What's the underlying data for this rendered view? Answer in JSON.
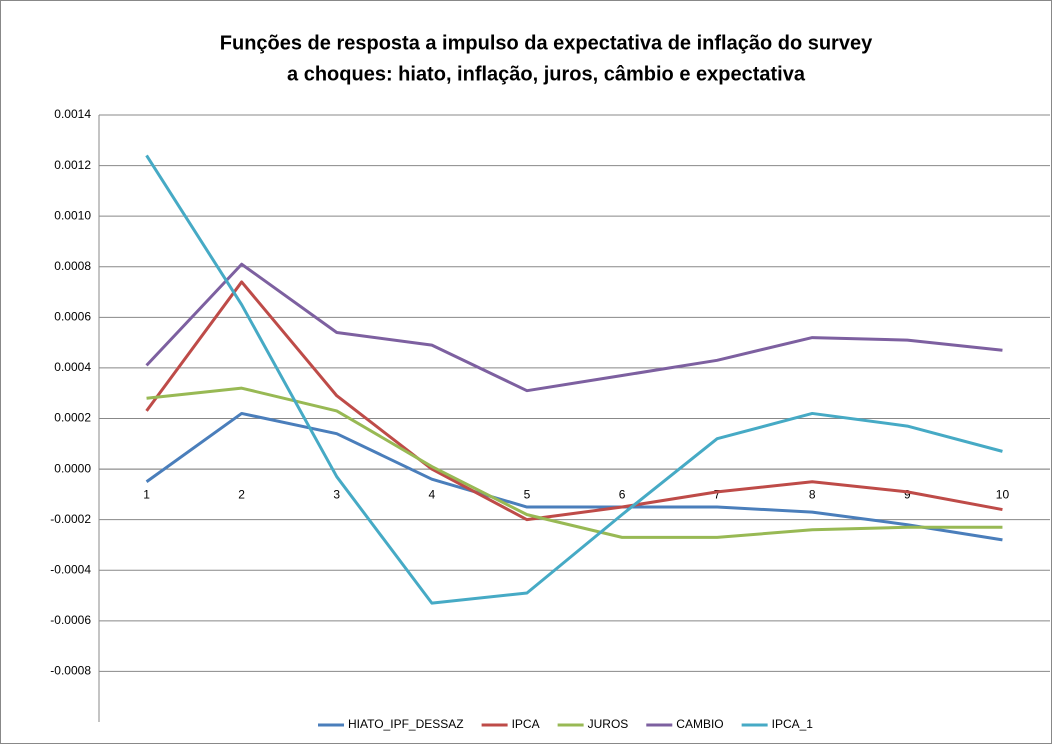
{
  "chart_data": {
    "type": "line",
    "title": [
      "Funções de resposta a impulso da expectativa de inflação do survey",
      "a choques: hiato, inflação, juros, câmbio e expectativa"
    ],
    "categories": [
      "1",
      "2",
      "3",
      "4",
      "5",
      "6",
      "7",
      "8",
      "9",
      "10"
    ],
    "series": [
      {
        "name": "HIATO_IPF_DESSAZ",
        "color": "#4a7ebb",
        "values": [
          -5e-05,
          0.00022,
          0.00014,
          -4e-05,
          -0.00015,
          -0.00015,
          -0.00015,
          -0.00017,
          -0.00022,
          -0.00028
        ]
      },
      {
        "name": "IPCA",
        "color": "#be4b48",
        "values": [
          0.00023,
          0.00074,
          0.00029,
          0.0,
          -0.0002,
          -0.00015,
          -9e-05,
          -5e-05,
          -9e-05,
          -0.00016
        ]
      },
      {
        "name": "JUROS",
        "color": "#98b954",
        "values": [
          0.00028,
          0.00032,
          0.00023,
          1e-05,
          -0.00018,
          -0.00027,
          -0.00027,
          -0.00024,
          -0.00023,
          -0.00023
        ]
      },
      {
        "name": "CAMBIO",
        "color": "#7d60a0",
        "values": [
          0.00041,
          0.00081,
          0.00054,
          0.00049,
          0.00031,
          0.00037,
          0.00043,
          0.00052,
          0.00051,
          0.00047
        ]
      },
      {
        "name": "IPCA_1",
        "color": "#46aac5",
        "values": [
          0.00124,
          0.00065,
          -3e-05,
          -0.00053,
          -0.00049,
          -0.00018,
          0.00012,
          0.00022,
          0.00017,
          7e-05
        ]
      }
    ],
    "ylim": [
      -0.001,
      0.0014
    ],
    "yticks": [
      -0.0008,
      -0.0006,
      -0.0004,
      -0.0002,
      {
        "value": 0,
        "label": "0.0000"
      },
      0.0002,
      0.0004,
      0.0006,
      0.0008,
      {
        "value": 0.001,
        "label": "0.0010"
      },
      0.0012,
      0.0014
    ],
    "grid": true,
    "legend": "bottom"
  }
}
